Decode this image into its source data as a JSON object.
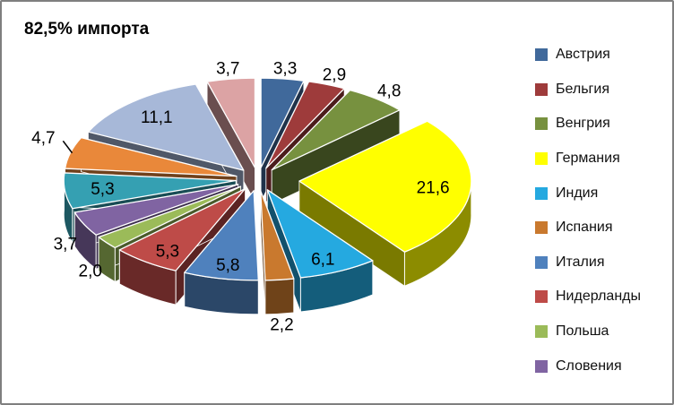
{
  "chart_data": {
    "type": "pie",
    "title": "82,5% импорта",
    "legend_position": "right",
    "style": "3d-exploded",
    "values_total_shown": 82.5,
    "explode_default": 0.13,
    "slices": [
      {
        "name": "Австрия",
        "value": 3.3,
        "label": "3,3",
        "color": "#40699B",
        "inside": false
      },
      {
        "name": "Бельгия",
        "value": 2.9,
        "label": "2,9",
        "color": "#9E3B3B",
        "inside": false
      },
      {
        "name": "Венгрия",
        "value": 4.8,
        "label": "4,8",
        "color": "#77913F",
        "inside": false
      },
      {
        "name": "Германия",
        "value": 21.6,
        "label": "21,6",
        "color": "#FFFF00",
        "inside": true,
        "explode": 0.24
      },
      {
        "name": "Индия",
        "value": 6.1,
        "label": "6,1",
        "color": "#25A9E0",
        "inside": true
      },
      {
        "name": "Испания",
        "value": 2.2,
        "label": "2,2",
        "color": "#C9792E",
        "inside": false
      },
      {
        "name": "Италия",
        "value": 5.8,
        "label": "5,8",
        "color": "#4F81BD",
        "inside": true
      },
      {
        "name": "Нидерланды",
        "value": 5.3,
        "label": "5,3",
        "color": "#BE4B48",
        "inside": true
      },
      {
        "name": "Польша",
        "value": 2.0,
        "label": "2,0",
        "color": "#9BBB59",
        "inside": false
      },
      {
        "name": "Словения",
        "value": 3.7,
        "label": "3,7",
        "color": "#8064A2",
        "inside": false
      },
      {
        "name": null,
        "value": 5.3,
        "label": "5,3",
        "color": "#35A0B2",
        "inside": true
      },
      {
        "name": null,
        "value": 4.7,
        "label": "4,7",
        "color": "#E9883A",
        "inside": false,
        "leader": true
      },
      {
        "name": null,
        "value": 11.1,
        "label": "11,1",
        "color": "#A7B8D8",
        "inside": true
      },
      {
        "name": null,
        "value": 3.7,
        "label": "3,7",
        "color": "#DCA3A4",
        "inside": false
      }
    ],
    "legend_entries": [
      "Австрия",
      "Бельгия",
      "Венгрия",
      "Германия",
      "Индия",
      "Испания",
      "Италия",
      "Нидерланды",
      "Польша",
      "Словения"
    ]
  }
}
